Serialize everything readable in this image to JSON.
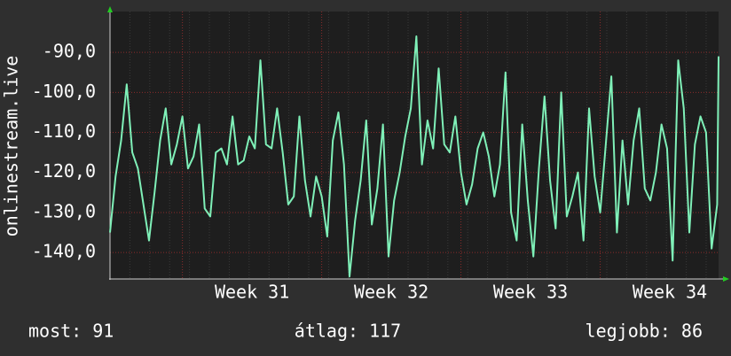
{
  "chart_data": {
    "type": "line",
    "y_label": "onlinestream.live",
    "x": [
      30.48,
      30.52,
      30.56,
      30.6,
      30.64,
      30.68,
      30.72,
      30.76,
      30.8,
      30.84,
      30.88,
      30.92,
      30.96,
      31,
      31.04,
      31.08,
      31.12,
      31.16,
      31.2,
      31.24,
      31.28,
      31.32,
      31.36,
      31.4,
      31.44,
      31.48,
      31.52,
      31.56,
      31.6,
      31.64,
      31.68,
      31.72,
      31.76,
      31.8,
      31.84,
      31.88,
      31.92,
      31.96,
      32,
      32.04,
      32.08,
      32.12,
      32.16,
      32.2,
      32.24,
      32.28,
      32.32,
      32.36,
      32.4,
      32.44,
      32.48,
      32.52,
      32.56,
      32.6,
      32.64,
      32.68,
      32.72,
      32.76,
      32.8,
      32.84,
      32.88,
      32.92,
      32.96,
      33,
      33.04,
      33.08,
      33.12,
      33.16,
      33.2,
      33.24,
      33.28,
      33.32,
      33.36,
      33.4,
      33.44,
      33.48,
      33.52,
      33.56,
      33.6,
      33.64,
      33.68,
      33.72,
      33.76,
      33.8,
      33.84,
      33.88,
      33.92,
      33.96,
      34,
      34.04,
      34.08,
      34.12,
      34.16,
      34.2,
      34.24,
      34.28,
      34.32,
      34.36,
      34.4,
      34.44,
      34.48,
      34.52,
      34.56,
      34.6,
      34.64,
      34.68,
      34.72,
      34.76,
      34.8,
      34.84,
      34.85
    ],
    "values": [
      -135,
      -121,
      -112,
      -98,
      -115,
      -119,
      -128,
      -137,
      -125,
      -112,
      -104,
      -118,
      -113,
      -106,
      -119,
      -116,
      -108,
      -129,
      -131,
      -115,
      -114,
      -118,
      -106,
      -118,
      -117,
      -111,
      -114,
      -92,
      -113,
      -114,
      -104,
      -115,
      -128,
      -126,
      -106,
      -122,
      -131,
      -121,
      -126,
      -136,
      -112,
      -105,
      -118,
      -146,
      -132,
      -122,
      -107,
      -133,
      -124,
      -108,
      -141,
      -127,
      -120,
      -111,
      -104,
      -86,
      -118,
      -107,
      -114,
      -94,
      -113,
      -115,
      -106,
      -120,
      -128,
      -123,
      -114,
      -110,
      -116,
      -126,
      -118,
      -95,
      -130,
      -137,
      -108,
      -127,
      -141,
      -119,
      -101,
      -122,
      -134,
      -100,
      -131,
      -126,
      -120,
      -137,
      -104,
      -121,
      -130,
      -113,
      -96,
      -135,
      -112,
      -128,
      -112,
      -104,
      -124,
      -127,
      -120,
      -108,
      -114,
      -142,
      -92,
      -104,
      -135,
      -113,
      -106,
      -110,
      -139,
      -128,
      -91
    ],
    "color": "#7ff0b8",
    "xlim": [
      30.48,
      34.85
    ],
    "xticks": [
      {
        "value": 31,
        "label": "Week 31"
      },
      {
        "value": 32,
        "label": "Week 32"
      },
      {
        "value": 33,
        "label": "Week 33"
      },
      {
        "value": 34,
        "label": "Week 34"
      }
    ],
    "ylim": [
      -146.6,
      -79.8
    ],
    "yticks": [
      {
        "value": -90,
        "label": "-90,0"
      },
      {
        "value": -100,
        "label": "-100,0"
      },
      {
        "value": -110,
        "label": "-110,0"
      },
      {
        "value": -120,
        "label": "-120,0"
      },
      {
        "value": -130,
        "label": "-130,0"
      },
      {
        "value": -140,
        "label": "-140,0"
      }
    ],
    "grid": true,
    "footer": [
      "most: 91",
      "átlag: 117",
      "legjobb: 86"
    ]
  }
}
